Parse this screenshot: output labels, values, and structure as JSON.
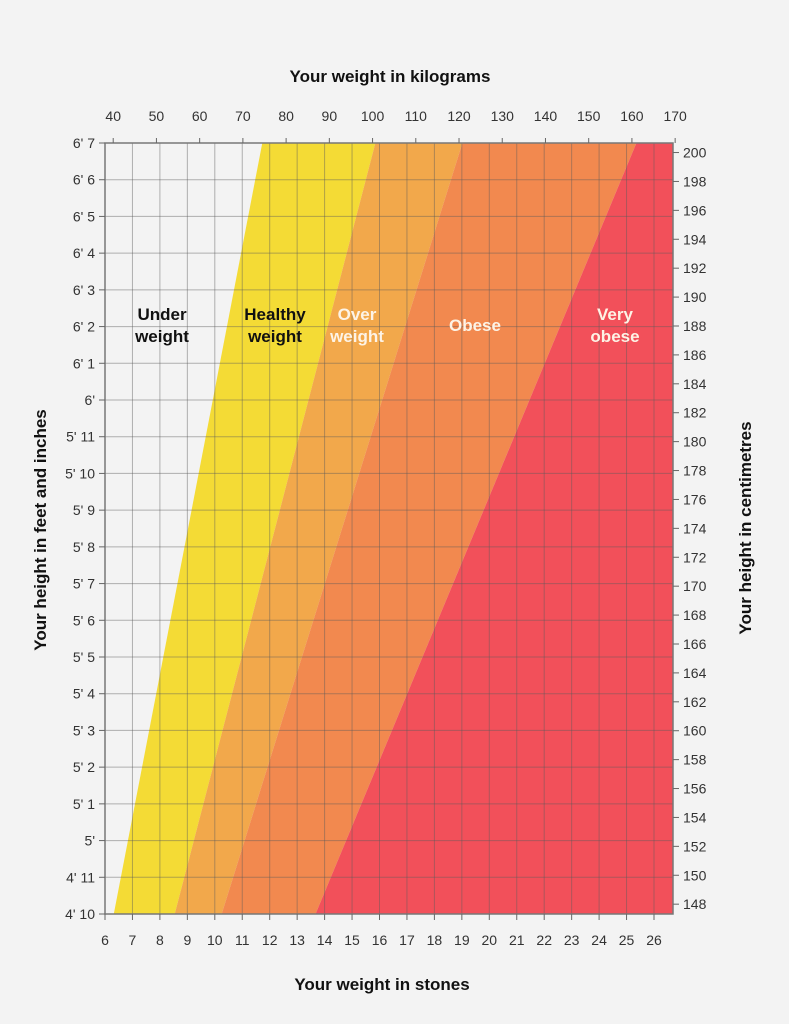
{
  "chart_data": {
    "type": "area",
    "title_top": "Your weight in kilograms",
    "xlabel": "Your weight in stones",
    "ylabel_left": "Your height in feet and inches",
    "ylabel_right": "Your height in centimetres",
    "x_stones_ticks": [
      "6",
      "7",
      "8",
      "9",
      "10",
      "11",
      "12",
      "13",
      "14",
      "15",
      "16",
      "17",
      "18",
      "19",
      "20",
      "21",
      "22",
      "23",
      "24",
      "25",
      "26"
    ],
    "x_kg_ticks": [
      "40",
      "50",
      "60",
      "70",
      "80",
      "90",
      "100",
      "110",
      "120",
      "130",
      "140",
      "150",
      "160",
      "170"
    ],
    "y_left_ticks": [
      "4' 10",
      "4' 11",
      "5'",
      "5' 1",
      "5' 2",
      "5' 3",
      "5' 4",
      "5' 5",
      "5' 6",
      "5' 7",
      "5' 8",
      "5' 9",
      "5' 10",
      "5' 11",
      "6'",
      "6' 1",
      "6' 2",
      "6' 3",
      "6' 4",
      "6' 5",
      "6' 6",
      "6' 7"
    ],
    "y_right_ticks": [
      "148",
      "150",
      "152",
      "154",
      "156",
      "158",
      "160",
      "162",
      "164",
      "166",
      "168",
      "170",
      "172",
      "174",
      "176",
      "178",
      "180",
      "182",
      "184",
      "186",
      "188",
      "190",
      "192",
      "194",
      "196",
      "198",
      "200"
    ],
    "xlim_stones": [
      6,
      26.7
    ],
    "ylim_inches": [
      58,
      79
    ],
    "grid": true,
    "bands": [
      {
        "label_line1": "Under",
        "label_line2": "weight",
        "color": "#f3f3f3",
        "text_color": "#111111",
        "upper_boundary_stones": [
          6.32,
          11.73
        ]
      },
      {
        "label_line1": "Healthy",
        "label_line2": "weight",
        "color": "#f4db35",
        "text_color": "#111111",
        "upper_boundary_stones": [
          8.54,
          15.85
        ]
      },
      {
        "label_line1": "Over",
        "label_line2": "weight",
        "color": "#f2a84b",
        "text_color": "#fdf3e6",
        "upper_boundary_stones": [
          10.25,
          19.02
        ]
      },
      {
        "label_line1": "Obese",
        "label_line2": "",
        "color": "#f2894f",
        "text_color": "#fdf3e6",
        "upper_boundary_stones": [
          13.67,
          25.36
        ]
      },
      {
        "label_line1": "Very",
        "label_line2": "obese",
        "color": "#f2505a",
        "text_color": "#fdf3e6",
        "upper_boundary_stones": null
      }
    ],
    "boundary_heights_inches": [
      58,
      79
    ]
  }
}
